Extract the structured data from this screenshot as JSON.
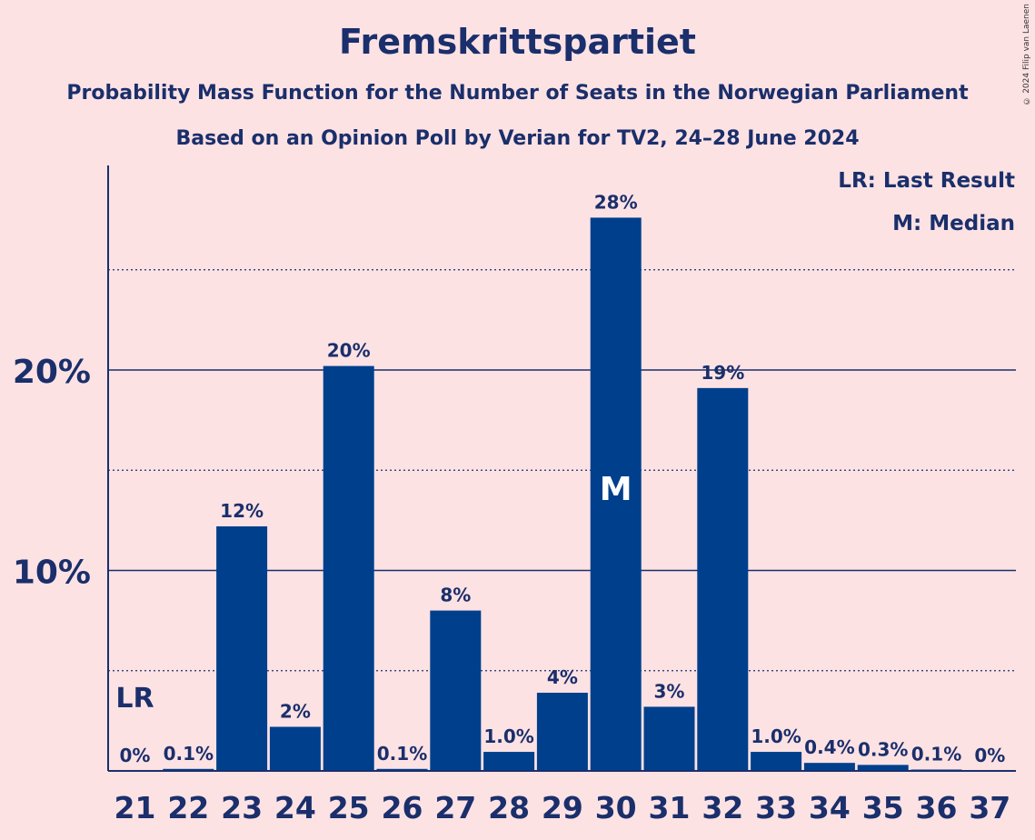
{
  "title": "Fremskrittspartiet",
  "subtitle1": "Probability Mass Function for the Number of Seats in the Norwegian Parliament",
  "subtitle2": "Based on an Opinion Poll by Verian for TV2, 24–28 June 2024",
  "copyright": "© 2024 Filip van Laenen",
  "legend": {
    "last_result": "LR: Last Result",
    "median": "M: Median"
  },
  "colors": {
    "background": "#fde2e4",
    "bar": "#003f8c",
    "text": "#1a2f6b"
  },
  "chart_data": {
    "type": "bar",
    "categories": [
      "21",
      "22",
      "23",
      "24",
      "25",
      "26",
      "27",
      "28",
      "29",
      "30",
      "31",
      "32",
      "33",
      "34",
      "35",
      "36",
      "37"
    ],
    "values": [
      0,
      0.1,
      12.2,
      2.2,
      20.2,
      0.1,
      8.0,
      0.95,
      3.9,
      27.6,
      3.2,
      19.1,
      0.95,
      0.4,
      0.3,
      0.05,
      0
    ],
    "data_labels": [
      "0%",
      "0.1%",
      "12%",
      "2%",
      "20%",
      "0.1%",
      "8%",
      "1.0%",
      "4%",
      "28%",
      "3%",
      "19%",
      "1.0%",
      "0.4%",
      "0.3%",
      "0.1%",
      "0%"
    ],
    "yticks": [
      {
        "value": 10,
        "label": "10%"
      },
      {
        "value": 20,
        "label": "20%"
      }
    ],
    "minor_gridlines": [
      5,
      15,
      25
    ],
    "ylim": [
      0,
      30
    ],
    "last_result": {
      "category": "21",
      "label": "LR"
    },
    "median": {
      "category": "30",
      "label": "M"
    },
    "xlabel": "",
    "ylabel": ""
  }
}
